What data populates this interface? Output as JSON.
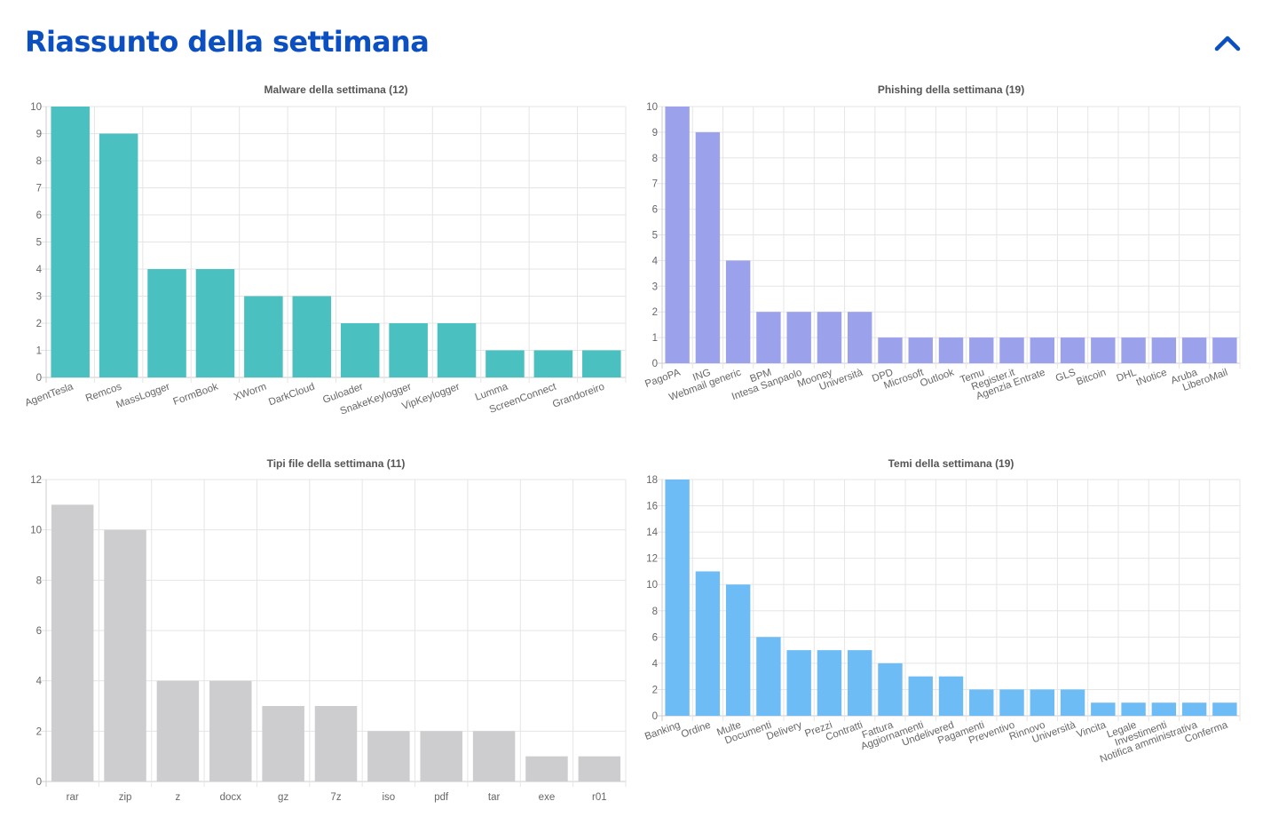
{
  "header": {
    "title": "Riassunto della settimana",
    "collapse_icon": "chevron-up-icon"
  },
  "chart_data": [
    {
      "type": "bar",
      "title": "Malware della settimana (12)",
      "color": "#4bc0c0",
      "categories": [
        "AgentTesla",
        "Remcos",
        "MassLogger",
        "FormBook",
        "XWorm",
        "DarkCloud",
        "Guloader",
        "SnakeKeylogger",
        "VipKeylogger",
        "Lumma",
        "ScreenConnect",
        "Grandoreiro"
      ],
      "values": [
        10,
        9,
        4,
        4,
        3,
        3,
        2,
        2,
        2,
        1,
        1,
        1
      ],
      "ylim": [
        0,
        10
      ],
      "yticks": [
        0,
        1,
        2,
        3,
        4,
        5,
        6,
        7,
        8,
        9,
        10
      ],
      "grid": true,
      "rotated_labels": true
    },
    {
      "type": "bar",
      "title": "Phishing della settimana (19)",
      "color": "#9ba2eb",
      "categories": [
        "PagoPA",
        "ING",
        "Webmail generic",
        "BPM",
        "Intesa Sanpaolo",
        "Mooney",
        "Università",
        "DPD",
        "Microsoft",
        "Outlook",
        "Temu",
        "Register.it",
        "Agenzia Entrate",
        "GLS",
        "Bitcoin",
        "DHL",
        "tNotice",
        "Aruba",
        "LiberoMail"
      ],
      "values": [
        10,
        9,
        4,
        2,
        2,
        2,
        2,
        1,
        1,
        1,
        1,
        1,
        1,
        1,
        1,
        1,
        1,
        1,
        1
      ],
      "ylim": [
        0,
        10
      ],
      "yticks": [
        0,
        1,
        2,
        3,
        4,
        5,
        6,
        7,
        8,
        9,
        10
      ],
      "grid": true,
      "rotated_labels": true
    },
    {
      "type": "bar",
      "title": "Tipi file della settimana (11)",
      "color": "#cdcdcf",
      "categories": [
        "rar",
        "zip",
        "z",
        "docx",
        "gz",
        "7z",
        "iso",
        "pdf",
        "tar",
        "exe",
        "r01"
      ],
      "values": [
        11,
        10,
        4,
        4,
        3,
        3,
        2,
        2,
        2,
        1,
        1
      ],
      "ylim": [
        0,
        12
      ],
      "yticks": [
        0,
        2,
        4,
        6,
        8,
        10,
        12
      ],
      "grid": true,
      "rotated_labels": false
    },
    {
      "type": "bar",
      "title": "Temi della settimana (19)",
      "color": "#6ebcf6",
      "categories": [
        "Banking",
        "Ordine",
        "Multe",
        "Documenti",
        "Delivery",
        "Prezzi",
        "Contratti",
        "Fattura",
        "Aggiornamenti",
        "Undelivered",
        "Pagamenti",
        "Preventivo",
        "Rinnovo",
        "Università",
        "Vincita",
        "Legale",
        "Investimenti",
        "Notifica amministrativa",
        "Conferma"
      ],
      "values": [
        18,
        11,
        10,
        6,
        5,
        5,
        5,
        4,
        3,
        3,
        2,
        2,
        2,
        2,
        1,
        1,
        1,
        1,
        1
      ],
      "ylim": [
        0,
        18
      ],
      "yticks": [
        0,
        2,
        4,
        6,
        8,
        10,
        12,
        14,
        16,
        18
      ],
      "grid": true,
      "rotated_labels": true
    }
  ]
}
